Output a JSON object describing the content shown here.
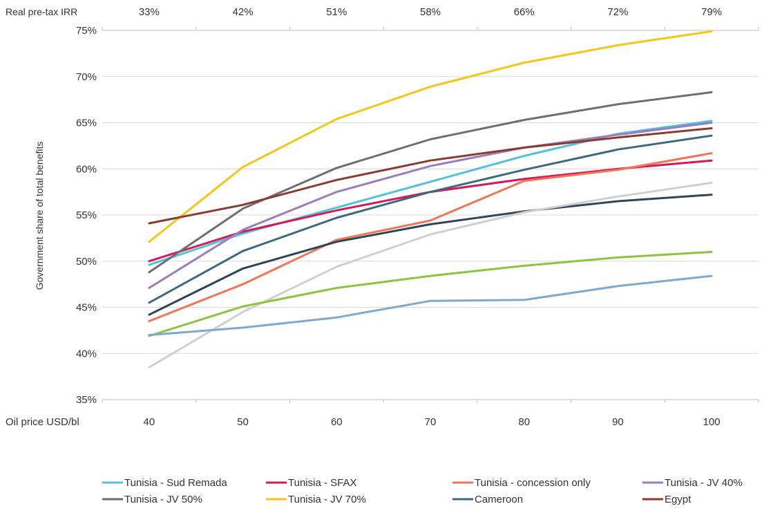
{
  "chart_data": {
    "type": "line",
    "top_axis_label": "Real pre-tax IRR",
    "top_categories": [
      "33%",
      "42%",
      "51%",
      "58%",
      "66%",
      "72%",
      "79%"
    ],
    "xlabel": "Oil price USD/bl",
    "x": [
      40,
      50,
      60,
      70,
      80,
      90,
      100
    ],
    "ylabel": "Government share of total benefits",
    "ylim": [
      35,
      75
    ],
    "yticks": [
      "35%",
      "40%",
      "45%",
      "50%",
      "55%",
      "60%",
      "65%",
      "70%",
      "75%"
    ],
    "grid": true,
    "legend_position": "bottom",
    "series": [
      {
        "name": "Tunisia - Sud Remada",
        "color": "#4FC3DC",
        "values": [
          49.6,
          53.0,
          55.8,
          58.6,
          61.4,
          63.8,
          65.2
        ]
      },
      {
        "name": "Tunisia - SFAX",
        "color": "#D6175B",
        "values": [
          50.0,
          53.2,
          55.5,
          57.5,
          58.9,
          60.0,
          60.9
        ]
      },
      {
        "name": "Tunisia - concession only",
        "color": "#EE7656",
        "values": [
          43.5,
          47.5,
          52.3,
          54.4,
          58.7,
          59.9,
          61.7
        ]
      },
      {
        "name": "Tunisia - JV 40%",
        "color": "#9B7CBF",
        "values": [
          47.1,
          53.4,
          57.5,
          60.3,
          62.3,
          63.7,
          65.0
        ]
      },
      {
        "name": "Tunisia - JV 50%",
        "color": "#6E6E6E",
        "values": [
          48.8,
          55.7,
          60.1,
          63.2,
          65.3,
          67.0,
          68.3
        ]
      },
      {
        "name": "Tunisia - JV 70%",
        "color": "#F5C518",
        "values": [
          52.1,
          60.2,
          65.4,
          68.9,
          71.5,
          73.4,
          74.9
        ]
      },
      {
        "name": "Cameroon",
        "color": "#3A6A80",
        "values": [
          45.5,
          51.1,
          54.7,
          57.5,
          59.9,
          62.1,
          63.6
        ]
      },
      {
        "name": "Egypt",
        "color": "#8B3A30",
        "values": [
          54.1,
          56.1,
          58.8,
          60.9,
          62.3,
          63.4,
          64.4
        ]
      },
      {
        "name": "",
        "color": "#2D4457",
        "values": [
          44.2,
          49.2,
          52.1,
          54.0,
          55.4,
          56.5,
          57.2
        ]
      },
      {
        "name": "",
        "color": "#CFCFCF",
        "values": [
          38.5,
          44.5,
          49.4,
          52.9,
          55.3,
          57.0,
          58.5
        ]
      },
      {
        "name": "",
        "color": "#8CC43F",
        "values": [
          41.9,
          45.1,
          47.1,
          48.4,
          49.5,
          50.4,
          51.0
        ]
      },
      {
        "name": "",
        "color": "#7FA7D1",
        "values": [
          42.0,
          42.8,
          43.9,
          45.7,
          45.8,
          47.3,
          48.4
        ]
      }
    ]
  }
}
